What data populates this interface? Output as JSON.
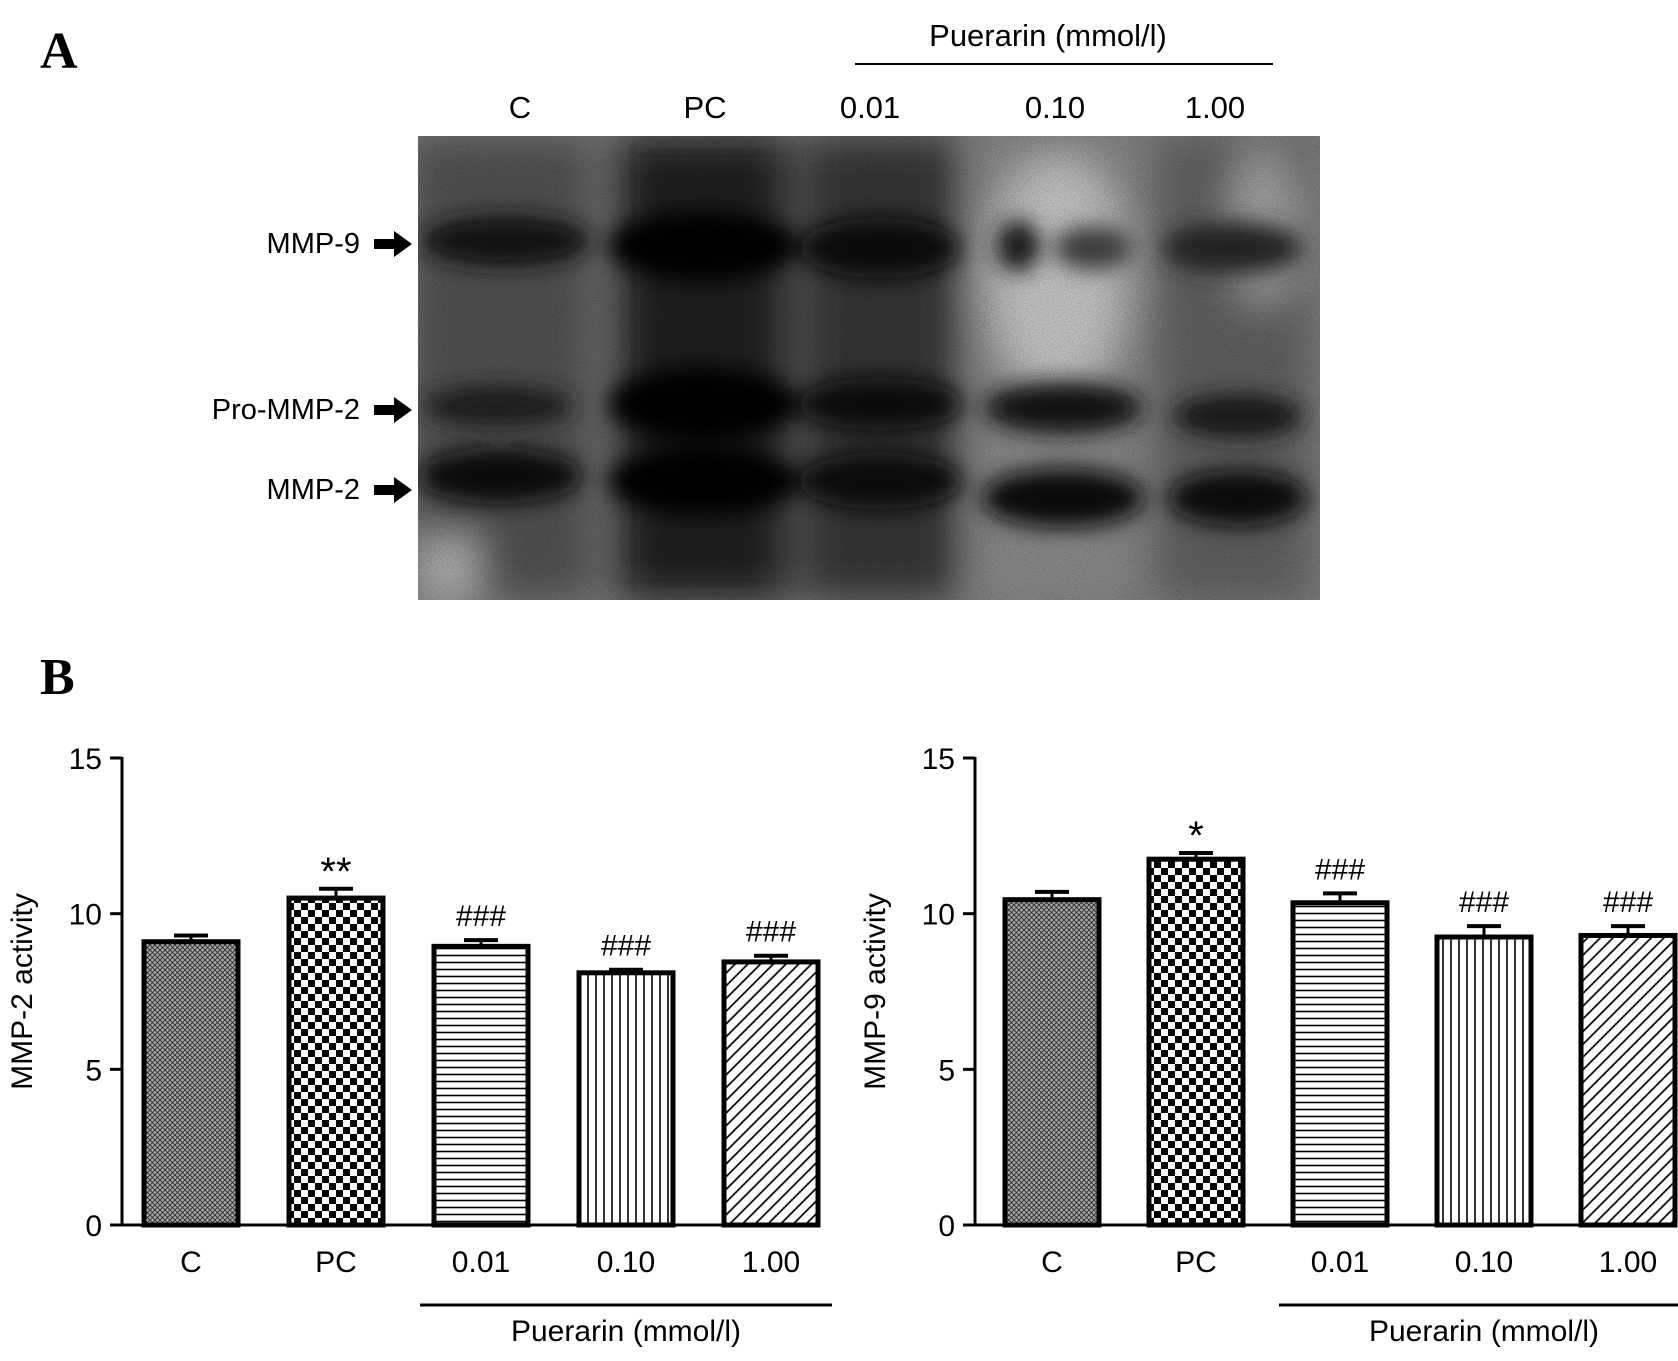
{
  "panels": {
    "a_label": "A",
    "b_label": "B"
  },
  "gel": {
    "treatment_label": "Puerarin (mmol/l)",
    "lanes": [
      "C",
      "PC",
      "0.01",
      "0.10",
      "1.00"
    ],
    "bands": [
      "MMP-9",
      "Pro-MMP-2",
      "MMP-2"
    ]
  },
  "chart_data": [
    {
      "type": "bar",
      "categories": [
        "C",
        "PC",
        "0.01",
        "0.10",
        "1.00"
      ],
      "values": [
        9.1,
        10.5,
        8.95,
        8.1,
        8.45
      ],
      "errors": [
        0.2,
        0.3,
        0.2,
        0.1,
        0.2
      ],
      "annotations": [
        "",
        "**",
        "###",
        "###",
        "###"
      ],
      "ylabel": "MMP-2 activity",
      "ylim": [
        0,
        15
      ],
      "yticks": [
        0,
        5,
        10,
        15
      ],
      "group_label": "Puerarin (mmol/l)",
      "patterns": [
        "crosshatch",
        "checker",
        "horizontal",
        "vertical",
        "diagonal"
      ]
    },
    {
      "type": "bar",
      "categories": [
        "C",
        "PC",
        "0.01",
        "0.10",
        "1.00"
      ],
      "values": [
        10.45,
        11.75,
        10.35,
        9.25,
        9.3
      ],
      "errors": [
        0.25,
        0.2,
        0.3,
        0.35,
        0.3
      ],
      "annotations": [
        "",
        "*",
        "###",
        "###",
        "###"
      ],
      "ylabel": "MMP-9 activity",
      "ylim": [
        0,
        15
      ],
      "yticks": [
        0,
        5,
        10,
        15
      ],
      "group_label": "Puerarin (mmol/l)",
      "patterns": [
        "crosshatch",
        "checker",
        "horizontal",
        "vertical",
        "diagonal"
      ]
    }
  ]
}
